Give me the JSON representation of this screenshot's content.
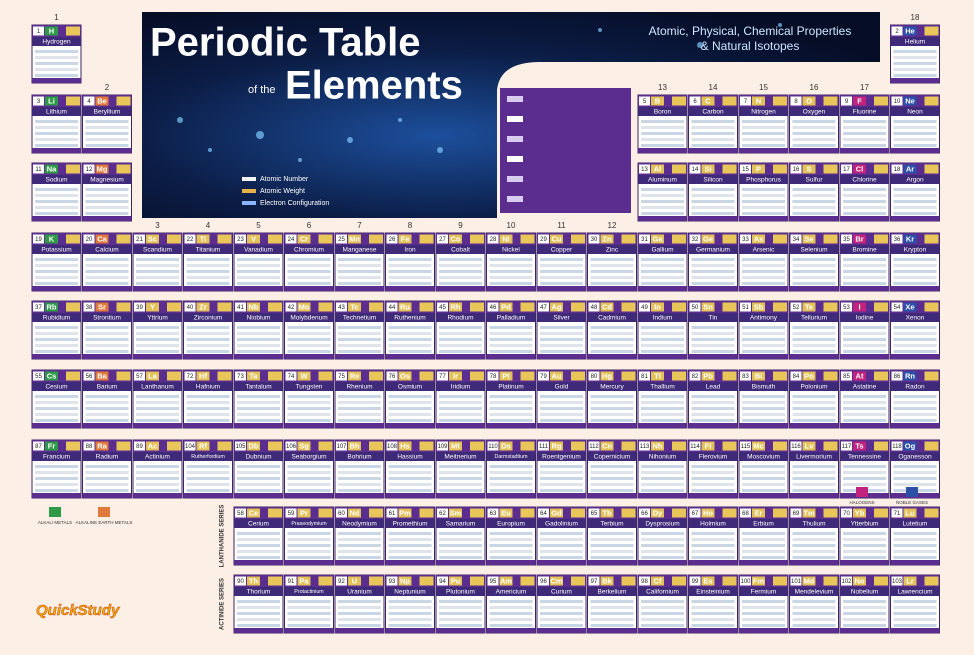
{
  "header": {
    "title": "Periodic Table",
    "title_small": "of the",
    "title_2": "Elements",
    "subtitle_1": "Atomic, Physical, Chemical Properties",
    "subtitle_2": "& Natural Isotopes"
  },
  "key": [
    "Atomic Number",
    "Atomic Weight",
    "Electron Configuration"
  ],
  "groups": [
    1,
    2,
    3,
    4,
    5,
    6,
    7,
    8,
    9,
    10,
    11,
    12,
    13,
    14,
    15,
    16,
    17,
    18
  ],
  "periods": [
    [
      [
        1,
        "H",
        "Hydrogen"
      ],
      [
        2,
        "He",
        "Helium"
      ]
    ],
    [
      [
        3,
        "Li",
        "Lithium"
      ],
      [
        4,
        "Be",
        "Beryllium"
      ],
      [
        5,
        "B",
        "Boron"
      ],
      [
        6,
        "C",
        "Carbon"
      ],
      [
        7,
        "N",
        "Nitrogen"
      ],
      [
        8,
        "O",
        "Oxygen"
      ],
      [
        9,
        "F",
        "Fluorine"
      ],
      [
        10,
        "Ne",
        "Neon"
      ]
    ],
    [
      [
        11,
        "Na",
        "Sodium"
      ],
      [
        12,
        "Mg",
        "Magnesium"
      ],
      [
        13,
        "Al",
        "Aluminum"
      ],
      [
        14,
        "Si",
        "Silicon"
      ],
      [
        15,
        "P",
        "Phosphorus"
      ],
      [
        16,
        "S",
        "Sulfur"
      ],
      [
        17,
        "Cl",
        "Chlorine"
      ],
      [
        18,
        "Ar",
        "Argon"
      ]
    ],
    [
      [
        19,
        "K",
        "Potassium"
      ],
      [
        20,
        "Ca",
        "Calcium"
      ],
      [
        21,
        "Sc",
        "Scandium"
      ],
      [
        22,
        "Ti",
        "Titanium"
      ],
      [
        23,
        "V",
        "Vanadium"
      ],
      [
        24,
        "Cr",
        "Chromium"
      ],
      [
        25,
        "Mn",
        "Manganese"
      ],
      [
        26,
        "Fe",
        "Iron"
      ],
      [
        27,
        "Co",
        "Cobalt"
      ],
      [
        28,
        "Ni",
        "Nickel"
      ],
      [
        29,
        "Cu",
        "Copper"
      ],
      [
        30,
        "Zn",
        "Zinc"
      ],
      [
        31,
        "Ga",
        "Gallium"
      ],
      [
        32,
        "Ge",
        "Germanium"
      ],
      [
        33,
        "As",
        "Arsenic"
      ],
      [
        34,
        "Se",
        "Selenium"
      ],
      [
        35,
        "Br",
        "Bromine"
      ],
      [
        36,
        "Kr",
        "Krypton"
      ]
    ],
    [
      [
        37,
        "Rb",
        "Rubidium"
      ],
      [
        38,
        "Sr",
        "Strontium"
      ],
      [
        39,
        "Y",
        "Yttrium"
      ],
      [
        40,
        "Zr",
        "Zirconium"
      ],
      [
        41,
        "Nb",
        "Niobium"
      ],
      [
        42,
        "Mo",
        "Molybdenum"
      ],
      [
        43,
        "Tc",
        "Technetium"
      ],
      [
        44,
        "Ru",
        "Ruthenium"
      ],
      [
        45,
        "Rh",
        "Rhodium"
      ],
      [
        46,
        "Pd",
        "Palladium"
      ],
      [
        47,
        "Ag",
        "Silver"
      ],
      [
        48,
        "Cd",
        "Cadmium"
      ],
      [
        49,
        "In",
        "Indium"
      ],
      [
        50,
        "Sn",
        "Tin"
      ],
      [
        51,
        "Sb",
        "Antimony"
      ],
      [
        52,
        "Te",
        "Tellurium"
      ],
      [
        53,
        "I",
        "Iodine"
      ],
      [
        54,
        "Xe",
        "Xenon"
      ]
    ],
    [
      [
        55,
        "Cs",
        "Cesium"
      ],
      [
        56,
        "Ba",
        "Barium"
      ],
      [
        57,
        "La",
        "Lanthanum"
      ],
      [
        72,
        "Hf",
        "Hafnium"
      ],
      [
        73,
        "Ta",
        "Tantalum"
      ],
      [
        74,
        "W",
        "Tungsten"
      ],
      [
        75,
        "Re",
        "Rhenium"
      ],
      [
        76,
        "Os",
        "Osmium"
      ],
      [
        77,
        "Ir",
        "Iridium"
      ],
      [
        78,
        "Pt",
        "Platinum"
      ],
      [
        79,
        "Au",
        "Gold"
      ],
      [
        80,
        "Hg",
        "Mercury"
      ],
      [
        81,
        "Tl",
        "Thallium"
      ],
      [
        82,
        "Pb",
        "Lead"
      ],
      [
        83,
        "Bi",
        "Bismuth"
      ],
      [
        84,
        "Po",
        "Polonium"
      ],
      [
        85,
        "At",
        "Astatine"
      ],
      [
        86,
        "Rn",
        "Radon"
      ]
    ],
    [
      [
        87,
        "Fr",
        "Francium"
      ],
      [
        88,
        "Ra",
        "Radium"
      ],
      [
        89,
        "Ac",
        "Actinium"
      ],
      [
        104,
        "Rf",
        "Rutherfordium"
      ],
      [
        105,
        "Db",
        "Dubnium"
      ],
      [
        106,
        "Sg",
        "Seaborgium"
      ],
      [
        107,
        "Bh",
        "Bohrium"
      ],
      [
        108,
        "Hs",
        "Hassium"
      ],
      [
        109,
        "Mt",
        "Meitnerium"
      ],
      [
        110,
        "Ds",
        "Darmstadtium"
      ],
      [
        111,
        "Rg",
        "Roentgenium"
      ],
      [
        112,
        "Cn",
        "Copernicium"
      ],
      [
        113,
        "Nh",
        "Nihonium"
      ],
      [
        114,
        "Fl",
        "Flerovium"
      ],
      [
        115,
        "Mc",
        "Moscovium"
      ],
      [
        116,
        "Lv",
        "Livermorium"
      ],
      [
        117,
        "Ts",
        "Tennessine"
      ],
      [
        118,
        "Og",
        "Oganesson"
      ]
    ]
  ],
  "series": [
    {
      "label": "LANTHANIDE SERIES",
      "elements": [
        [
          58,
          "Ce",
          "Cerium"
        ],
        [
          59,
          "Pr",
          "Praseodymium"
        ],
        [
          60,
          "Nd",
          "Neodymium"
        ],
        [
          61,
          "Pm",
          "Promethium"
        ],
        [
          62,
          "Sm",
          "Samarium"
        ],
        [
          63,
          "Eu",
          "Europium"
        ],
        [
          64,
          "Gd",
          "Gadolinium"
        ],
        [
          65,
          "Tb",
          "Terbium"
        ],
        [
          66,
          "Dy",
          "Dysprosium"
        ],
        [
          67,
          "Ho",
          "Holmium"
        ],
        [
          68,
          "Er",
          "Erbium"
        ],
        [
          69,
          "Tm",
          "Thulium"
        ],
        [
          70,
          "Yb",
          "Ytterbium"
        ],
        [
          71,
          "Lu",
          "Lutetium"
        ]
      ]
    },
    {
      "label": "ACTINIDE SERIES",
      "elements": [
        [
          90,
          "Th",
          "Thorium"
        ],
        [
          91,
          "Pa",
          "Protactinium"
        ],
        [
          92,
          "U",
          "Uranium"
        ],
        [
          93,
          "Np",
          "Neptunium"
        ],
        [
          94,
          "Pu",
          "Plutonium"
        ],
        [
          95,
          "Am",
          "Americium"
        ],
        [
          96,
          "Cm",
          "Curium"
        ],
        [
          97,
          "Bk",
          "Berkelium"
        ],
        [
          98,
          "Cf",
          "Californium"
        ],
        [
          99,
          "Es",
          "Einsteinium"
        ],
        [
          100,
          "Fm",
          "Fermium"
        ],
        [
          101,
          "Md",
          "Mendelevium"
        ],
        [
          102,
          "No",
          "Nobelium"
        ],
        [
          103,
          "Lr",
          "Lawrencium"
        ]
      ]
    }
  ],
  "legend": [
    {
      "label": "ALKALI METALS",
      "color": "#2e9a48"
    },
    {
      "label": "ALKALINE EARTH METALS",
      "color": "#e07a3c"
    },
    {
      "label": "HALOGENS",
      "color": "#c2237f"
    },
    {
      "label": "NOBLE GASES",
      "color": "#2e4fa8"
    }
  ],
  "logo": "QuickStudy"
}
